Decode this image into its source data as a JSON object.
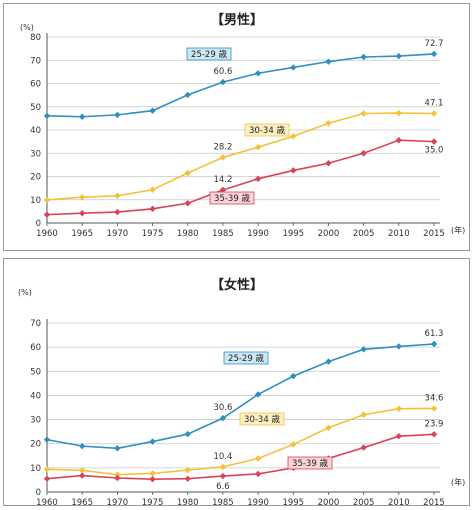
{
  "chart_data": [
    {
      "type": "line",
      "title": "【男性】",
      "ylabel": "(%)",
      "xunit": "(年)",
      "x": [
        1960,
        1965,
        1970,
        1975,
        1980,
        1985,
        1990,
        1995,
        2000,
        2005,
        2010,
        2015
      ],
      "x_ticks": [
        "1960",
        "1965",
        "1970",
        "1975",
        "1980",
        "1985",
        "1990",
        "1995",
        "2000",
        "2005",
        "2010",
        "2015"
      ],
      "ylim": [
        0,
        80
      ],
      "y_ticks": [
        "0",
        "10",
        "20",
        "30",
        "40",
        "50",
        "60",
        "70",
        "80"
      ],
      "grid": true,
      "series": [
        {
          "name": "25-29 歳",
          "color": "#2f8fbf",
          "label_fill": "#cde8f5",
          "values": [
            46.1,
            45.7,
            46.5,
            48.3,
            55.1,
            60.6,
            64.4,
            66.9,
            69.4,
            71.4,
            71.8,
            72.7
          ]
        },
        {
          "name": "30-34 歳",
          "color": "#f3c23a",
          "label_fill": "#fdefc4",
          "values": [
            9.9,
            11.1,
            11.7,
            14.3,
            21.5,
            28.2,
            32.6,
            37.3,
            42.9,
            47.1,
            47.3,
            47.1
          ]
        },
        {
          "name": "35-39 歳",
          "color": "#d9435a",
          "label_fill": "#f9d3d7",
          "values": [
            3.6,
            4.2,
            4.7,
            6.1,
            8.5,
            14.2,
            19.0,
            22.6,
            25.7,
            30.0,
            35.6,
            35.0
          ]
        }
      ],
      "data_labels": [
        {
          "series": 0,
          "index": 5,
          "text": "60.6"
        },
        {
          "series": 0,
          "index": 11,
          "text": "72.7"
        },
        {
          "series": 1,
          "index": 5,
          "text": "28.2"
        },
        {
          "series": 1,
          "index": 11,
          "text": "47.1"
        },
        {
          "series": 2,
          "index": 5,
          "text": "14.2"
        },
        {
          "series": 2,
          "index": 11,
          "text": "35.0"
        }
      ]
    },
    {
      "type": "line",
      "title": "【女性】",
      "ylabel": "(%)",
      "xunit": "(年)",
      "x": [
        1960,
        1965,
        1970,
        1975,
        1980,
        1985,
        1990,
        1995,
        2000,
        2005,
        2010,
        2015
      ],
      "x_ticks": [
        "1960",
        "1965",
        "1970",
        "1975",
        "1980",
        "1985",
        "1990",
        "1995",
        "2000",
        "2005",
        "2010",
        "2015"
      ],
      "ylim": [
        0,
        70
      ],
      "y_ticks": [
        "0",
        "10",
        "20",
        "30",
        "40",
        "50",
        "60",
        "70"
      ],
      "grid": true,
      "series": [
        {
          "name": "25-29 歳",
          "color": "#2f8fbf",
          "label_fill": "#cde8f5",
          "values": [
            21.7,
            19.0,
            18.1,
            20.9,
            24.0,
            30.6,
            40.4,
            48.0,
            54.0,
            59.1,
            60.3,
            61.3
          ]
        },
        {
          "name": "30-34 歳",
          "color": "#f3c23a",
          "label_fill": "#fdefc4",
          "values": [
            9.4,
            9.0,
            7.2,
            7.7,
            9.1,
            10.4,
            13.9,
            19.7,
            26.6,
            32.0,
            34.5,
            34.6
          ]
        },
        {
          "name": "35-39 歳",
          "color": "#d9435a",
          "label_fill": "#f9d3d7",
          "values": [
            5.5,
            6.8,
            5.8,
            5.3,
            5.5,
            6.6,
            7.5,
            10.0,
            13.9,
            18.4,
            23.1,
            23.9
          ]
        }
      ],
      "data_labels": [
        {
          "series": 0,
          "index": 5,
          "text": "30.6"
        },
        {
          "series": 0,
          "index": 11,
          "text": "61.3"
        },
        {
          "series": 1,
          "index": 5,
          "text": "10.4"
        },
        {
          "series": 1,
          "index": 11,
          "text": "34.6"
        },
        {
          "series": 2,
          "index": 5,
          "text": "6.6"
        },
        {
          "series": 2,
          "index": 11,
          "text": "23.9"
        }
      ]
    }
  ]
}
